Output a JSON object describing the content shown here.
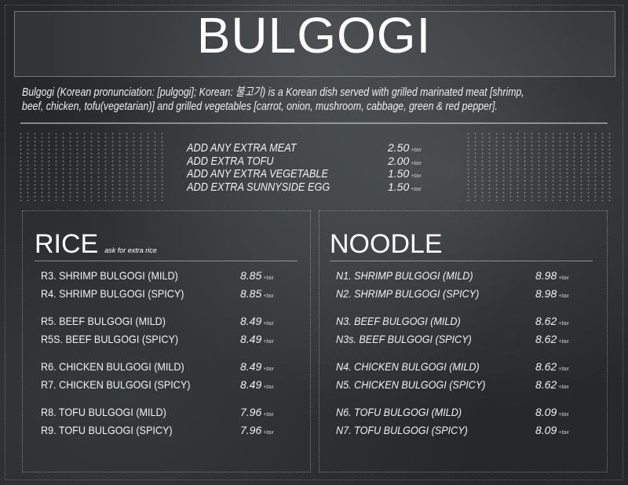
{
  "title": "BULGOGI",
  "description": [
    "Bulgogi (Korean pronunciation: [pulgogi]; Korean: 불고기) is a Korean dish served with grilled marinated meat [shrimp,",
    "beef, chicken, tofu(vegetarian)] and grilled vegetables [carrot, onion, mushroom, cabbage, green & red pepper]."
  ],
  "tax_label": "+tax",
  "extras": [
    {
      "label": "ADD ANY EXTRA MEAT",
      "price": "2.50"
    },
    {
      "label": "ADD EXTRA TOFU",
      "price": "2.00"
    },
    {
      "label": "ADD ANY EXTRA VEGETABLE",
      "price": "1.50"
    },
    {
      "label": "ADD EXTRA SUNNYSIDE EGG",
      "price": "1.50"
    }
  ],
  "rice": {
    "title": "RICE",
    "note": "ask for extra rice",
    "items": [
      {
        "label": "R3. SHRIMP BULGOGI (MILD)",
        "price": "8.85"
      },
      {
        "label": "R4. SHRIMP BULGOGI (SPICY)",
        "price": "8.85"
      },
      {
        "label": "R5. BEEF BULGOGI (MILD)",
        "price": "8.49"
      },
      {
        "label": "R5S. BEEF BULGOGI (SPICY)",
        "price": "8.49"
      },
      {
        "label": "R6. CHICKEN BULGOGI (MILD)",
        "price": "8.49"
      },
      {
        "label": "R7. CHICKEN BULGOGI (SPICY)",
        "price": "8.49"
      },
      {
        "label": "R8. TOFU BULGOGI (MILD)",
        "price": "7.96"
      },
      {
        "label": "R9. TOFU BULGOGI (SPICY)",
        "price": "7.96"
      }
    ]
  },
  "noodle": {
    "title": "NOODLE",
    "items": [
      {
        "label": "N1. SHRIMP BULGOGI (MILD)",
        "price": "8.98"
      },
      {
        "label": "N2. SHRIMP BULGOGI (SPICY)",
        "price": "8.98"
      },
      {
        "label": "N3. BEEF BULGOGI (MILD)",
        "price": "8.62"
      },
      {
        "label": "N3s. BEEF BULGOGI (SPICY)",
        "price": "8.62"
      },
      {
        "label": "N4. CHICKEN BULGOGI (MILD)",
        "price": "8.62"
      },
      {
        "label": "N5. CHICKEN BULGOGI (SPICY)",
        "price": "8.62"
      },
      {
        "label": "N6. TOFU BULGOGI (MILD)",
        "price": "8.09"
      },
      {
        "label": "N7. TOFU BULGOGI (SPICY)",
        "price": "8.09"
      }
    ]
  }
}
